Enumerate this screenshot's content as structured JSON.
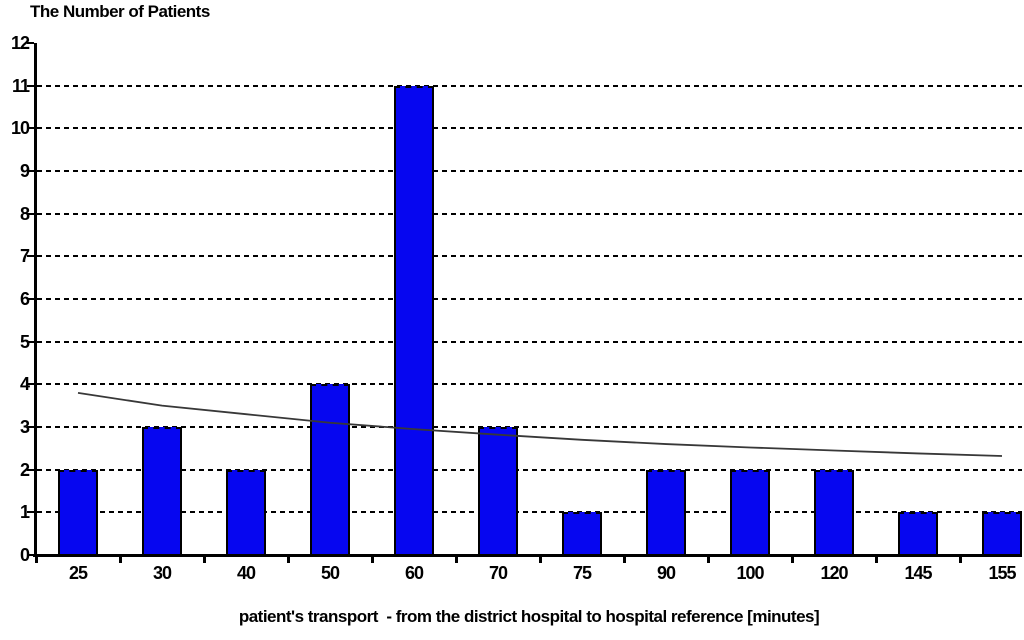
{
  "chart_data": {
    "type": "bar",
    "title": "The Number of Patients",
    "xlabel": "patient's transport  - from the district hospital to hospital reference [minutes]",
    "ylabel": "",
    "categories": [
      "25",
      "30",
      "40",
      "50",
      "60",
      "70",
      "75",
      "90",
      "100",
      "120",
      "145",
      "155"
    ],
    "values": [
      2,
      3,
      2,
      4,
      11,
      3,
      1,
      2,
      2,
      2,
      1,
      1
    ],
    "series": [
      {
        "name": "Number of patients",
        "values": [
          2,
          3,
          2,
          4,
          11,
          3,
          1,
          2,
          2,
          2,
          1,
          1
        ]
      },
      {
        "name": "trendline",
        "values": [
          3.8,
          3.5,
          3.3,
          3.1,
          2.95,
          2.82,
          2.7,
          2.6,
          2.52,
          2.45,
          2.38,
          2.32
        ]
      }
    ],
    "ylim": [
      0,
      12
    ],
    "yticks": [
      0,
      1,
      2,
      3,
      4,
      5,
      6,
      7,
      8,
      9,
      10,
      11,
      12
    ],
    "grid": "horizontal-dashed",
    "legend": "none",
    "colors": {
      "bar_fill": "#0606f0",
      "bar_border": "#000000",
      "trendline": "#383838",
      "axis": "#000000",
      "grid": "#000000",
      "text": "#000000",
      "background": "#ffffff"
    }
  }
}
